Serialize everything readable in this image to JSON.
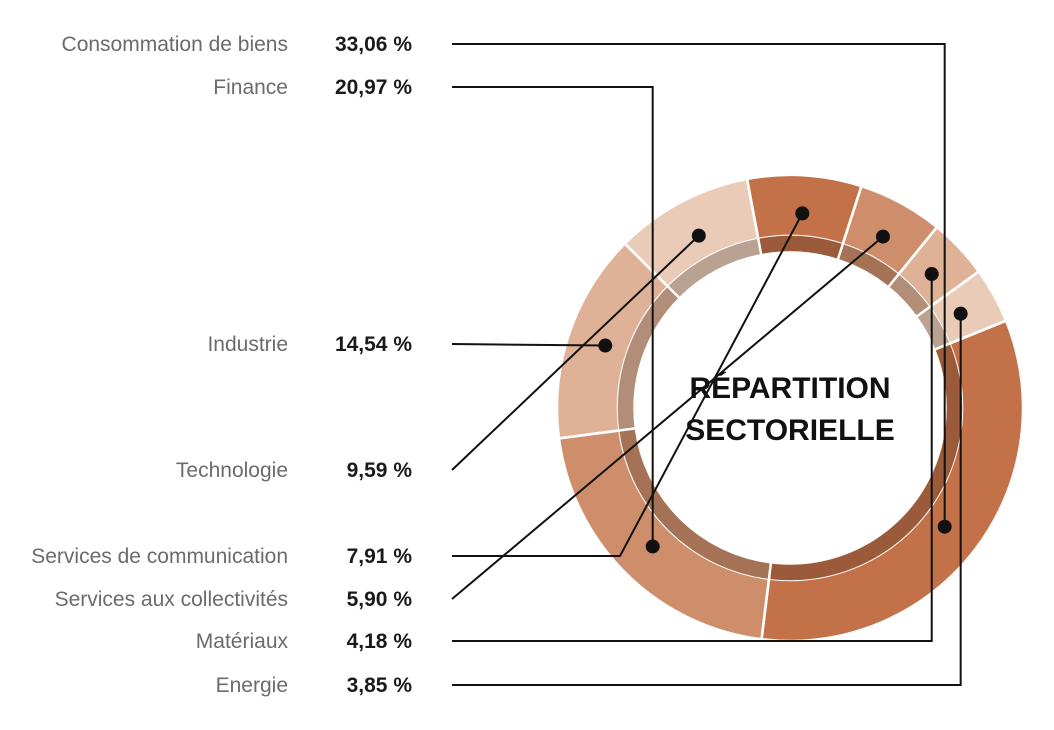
{
  "chart_data": {
    "type": "pie",
    "title": "RÉPARTITION SECTORIELLE",
    "title_lines": [
      "RÉPARTITION",
      "SECTORIELLE"
    ],
    "slices": [
      {
        "label": "Consommation de biens",
        "value": 33.06,
        "display": "33,06 %",
        "color": "#c27148",
        "inner": "#9b5a39"
      },
      {
        "label": "Finance",
        "value": 20.97,
        "display": "20,97 %",
        "color": "#ce8e6b",
        "inner": "#a57256"
      },
      {
        "label": "Industrie",
        "value": 14.54,
        "display": "14,54 %",
        "color": "#dfb297",
        "inner": "#b28e79"
      },
      {
        "label": "Technologie",
        "value": 9.59,
        "display": "9,59 %",
        "color": "#e9cbb8",
        "inner": "#baa293"
      },
      {
        "label": "Services de communication",
        "value": 7.91,
        "display": "7,91 %",
        "color": "#c27148",
        "inner": "#9b5a39"
      },
      {
        "label": "Services aux collectivités",
        "value": 5.9,
        "display": "5,90 %",
        "color": "#ce8e6b",
        "inner": "#a57256"
      },
      {
        "label": "Matériaux",
        "value": 4.18,
        "display": "4,18 %",
        "color": "#dfb297",
        "inner": "#b28e79"
      },
      {
        "label": "Energie",
        "value": 3.85,
        "display": "3,85 %",
        "color": "#e9cbb8",
        "inner": "#baa293"
      }
    ]
  }
}
